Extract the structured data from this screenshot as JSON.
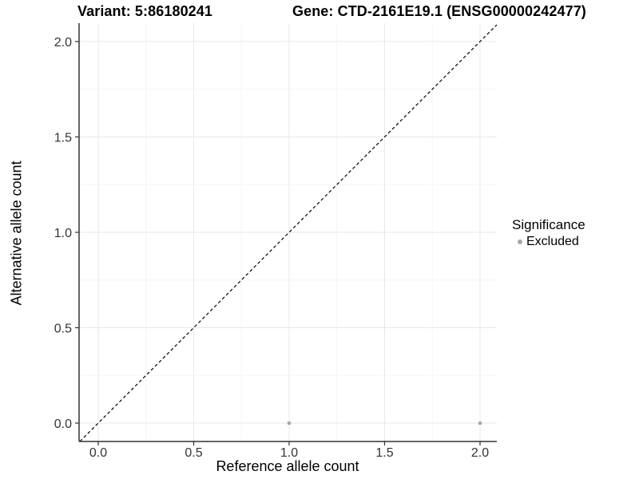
{
  "title": {
    "variant_label": "Variant: 5:86180241",
    "gene_label": "Gene: CTD-2161E19.1 (ENSG00000242477)"
  },
  "chart_data": {
    "type": "scatter",
    "title": "Variant: 5:86180241   Gene: CTD-2161E19.1 (ENSG00000242477)",
    "xlabel": "Reference allele count",
    "ylabel": "Alternative allele count",
    "xlim": [
      -0.1,
      2.1
    ],
    "ylim": [
      -0.1,
      2.1
    ],
    "x_ticks": [
      0.0,
      0.5,
      1.0,
      1.5,
      2.0
    ],
    "y_ticks": [
      0.0,
      0.5,
      1.0,
      1.5,
      2.0
    ],
    "x_tick_labels": [
      "0.0",
      "0.5",
      "1.0",
      "1.5",
      "2.0"
    ],
    "y_tick_labels": [
      "0.0",
      "0.5",
      "1.0",
      "1.5",
      "2.0"
    ],
    "minor_x_ticks": [
      0.25,
      0.75,
      1.25,
      1.75
    ],
    "minor_y_ticks": [
      0.25,
      0.75,
      1.25,
      1.75
    ],
    "grid": "major and minor, light gray on white",
    "series": [
      {
        "name": "Excluded",
        "color": "#a8a8a8",
        "points": [
          {
            "x": 1.0,
            "y": 0.0
          },
          {
            "x": 2.0,
            "y": 0.0
          }
        ]
      }
    ],
    "reference_line": {
      "type": "identity y=x",
      "style": "dashed",
      "color": "#000000"
    },
    "legend": {
      "position": "right",
      "title": "Significance",
      "entries": [
        {
          "label": "Excluded",
          "color": "#a8a8a8"
        }
      ]
    }
  },
  "colors": {
    "background": "#ffffff",
    "major_grid": "#e8e8e8",
    "minor_grid": "#f5f5f5",
    "axis_line": "#333333",
    "tick_text": "#333333",
    "title_text": "#000000",
    "point": "#a8a8a8",
    "reference_line": "#000000"
  }
}
